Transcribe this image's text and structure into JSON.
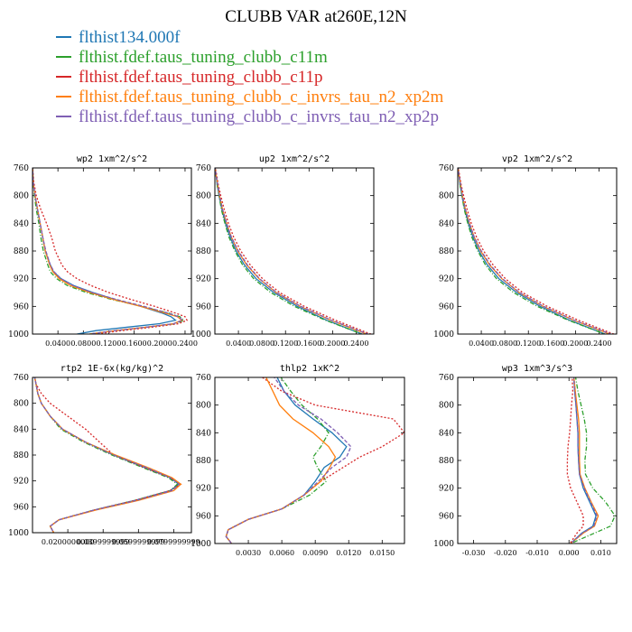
{
  "title": "CLUBB VAR at260E,12N",
  "legend": [
    {
      "label": "flthist134.000f",
      "color": "#1f77b4"
    },
    {
      "label": "flthist.fdef.taus_tuning_clubb_c11m",
      "color": "#2ca02c"
    },
    {
      "label": "flthist.fdef.taus_tuning_clubb_c11p",
      "color": "#d62728"
    },
    {
      "label": "flthist.fdef.taus_tuning_clubb_c_invrs_tau_n2_xp2m",
      "color": "#ff7f0e"
    },
    {
      "label": "flthist.fdef.taus_tuning_clubb_c_invrs_tau_n2_xp2p",
      "color": "#7f5fb4"
    }
  ],
  "series_styles": [
    {
      "color": "#1f77b4",
      "dash": ""
    },
    {
      "color": "#2ca02c",
      "dash": "5,2,1,2"
    },
    {
      "color": "#d62728",
      "dash": "2,2"
    },
    {
      "color": "#ff7f0e",
      "dash": ""
    },
    {
      "color": "#7f5fb4",
      "dash": "4,2"
    }
  ],
  "chart_data": [
    {
      "type": "line",
      "title": "wp2   1xm^2/s^2",
      "xlim": [
        0,
        0.25
      ],
      "ylim": [
        760,
        1000
      ],
      "xticks": [
        0.04,
        0.08,
        0.12,
        0.16,
        0.2,
        0.24
      ],
      "xtick_labels": [
        "0.0400",
        "0.0800",
        "0.1200",
        "0.1600",
        "0.2000",
        "0.2400"
      ],
      "yticks": [
        760,
        800,
        840,
        880,
        920,
        960,
        1000
      ],
      "ytick_labels": [
        "760",
        "800",
        "840",
        "880",
        "920",
        "960",
        "1000"
      ],
      "y": [
        757,
        780,
        800,
        820,
        840,
        860,
        880,
        900,
        910,
        920,
        930,
        940,
        950,
        960,
        970,
        975,
        980,
        985,
        990,
        995,
        1000
      ],
      "series": [
        {
          "values": [
            0,
            0.001,
            0.004,
            0.008,
            0.012,
            0.016,
            0.02,
            0.028,
            0.033,
            0.045,
            0.065,
            0.095,
            0.13,
            0.17,
            0.205,
            0.218,
            0.225,
            0.2,
            0.15,
            0.1,
            0.07
          ]
        },
        {
          "values": [
            0,
            0.001,
            0.003,
            0.006,
            0.01,
            0.013,
            0.017,
            0.024,
            0.028,
            0.038,
            0.055,
            0.085,
            0.125,
            0.172,
            0.215,
            0.232,
            0.238,
            0.225,
            0.18,
            0.13,
            0.09
          ]
        },
        {
          "values": [
            0,
            0.002,
            0.006,
            0.013,
            0.022,
            0.03,
            0.036,
            0.046,
            0.055,
            0.07,
            0.092,
            0.12,
            0.155,
            0.192,
            0.226,
            0.24,
            0.243,
            0.23,
            0.19,
            0.14,
            0.1
          ]
        },
        {
          "values": [
            0,
            0.001,
            0.004,
            0.008,
            0.012,
            0.016,
            0.02,
            0.027,
            0.032,
            0.042,
            0.06,
            0.09,
            0.128,
            0.17,
            0.21,
            0.228,
            0.235,
            0.222,
            0.18,
            0.13,
            0.09
          ]
        },
        {
          "values": [
            0,
            0.001,
            0.004,
            0.008,
            0.012,
            0.016,
            0.021,
            0.028,
            0.034,
            0.045,
            0.064,
            0.094,
            0.132,
            0.175,
            0.214,
            0.23,
            0.236,
            0.222,
            0.18,
            0.13,
            0.09
          ]
        }
      ]
    },
    {
      "type": "line",
      "title": "up2   1xm^2/s^2",
      "xlim": [
        0,
        0.27
      ],
      "ylim": [
        760,
        1000
      ],
      "xticks": [
        0.04,
        0.08,
        0.12,
        0.16,
        0.2,
        0.24
      ],
      "xtick_labels": [
        "0.0400",
        "0.0800",
        "0.1200",
        "0.1600",
        "0.2000",
        "0.2400"
      ],
      "yticks": [
        760,
        800,
        840,
        880,
        920,
        960,
        1000
      ],
      "ytick_labels": [
        "760",
        "800",
        "840",
        "880",
        "920",
        "960",
        "1000"
      ],
      "y": [
        757,
        770,
        785,
        800,
        820,
        840,
        860,
        880,
        900,
        920,
        940,
        960,
        980,
        1000
      ],
      "series": [
        {
          "values": [
            0,
            0.002,
            0.004,
            0.007,
            0.012,
            0.018,
            0.026,
            0.036,
            0.05,
            0.07,
            0.1,
            0.14,
            0.19,
            0.25
          ]
        },
        {
          "values": [
            0,
            0.002,
            0.004,
            0.007,
            0.011,
            0.017,
            0.024,
            0.034,
            0.047,
            0.066,
            0.095,
            0.135,
            0.188,
            0.25
          ]
        },
        {
          "values": [
            0,
            0.003,
            0.006,
            0.01,
            0.016,
            0.023,
            0.032,
            0.044,
            0.06,
            0.081,
            0.11,
            0.152,
            0.205,
            0.265
          ]
        },
        {
          "values": [
            0,
            0.002,
            0.005,
            0.008,
            0.013,
            0.02,
            0.028,
            0.039,
            0.054,
            0.075,
            0.104,
            0.145,
            0.197,
            0.258
          ]
        },
        {
          "values": [
            0,
            0.002,
            0.005,
            0.008,
            0.013,
            0.02,
            0.028,
            0.04,
            0.055,
            0.076,
            0.105,
            0.146,
            0.198,
            0.26
          ]
        }
      ]
    },
    {
      "type": "line",
      "title": "vp2   1xm^2/s^2",
      "xlim": [
        0,
        0.27
      ],
      "ylim": [
        760,
        1000
      ],
      "xticks": [
        0.04,
        0.08,
        0.12,
        0.16,
        0.2,
        0.24
      ],
      "xtick_labels": [
        "0.0400",
        "0.0800",
        "0.1200",
        "0.1600",
        "0.2000",
        "0.2400"
      ],
      "yticks": [
        760,
        800,
        840,
        880,
        920,
        960,
        1000
      ],
      "ytick_labels": [
        "760",
        "800",
        "840",
        "880",
        "920",
        "960",
        "1000"
      ],
      "y": [
        757,
        770,
        785,
        800,
        820,
        840,
        860,
        880,
        900,
        920,
        940,
        960,
        980,
        1000
      ],
      "series": [
        {
          "values": [
            0,
            0.002,
            0.004,
            0.007,
            0.012,
            0.018,
            0.026,
            0.036,
            0.05,
            0.07,
            0.1,
            0.14,
            0.19,
            0.25
          ]
        },
        {
          "values": [
            0,
            0.002,
            0.004,
            0.007,
            0.011,
            0.017,
            0.024,
            0.034,
            0.047,
            0.066,
            0.095,
            0.135,
            0.188,
            0.25
          ]
        },
        {
          "values": [
            0,
            0.003,
            0.006,
            0.01,
            0.016,
            0.023,
            0.032,
            0.044,
            0.06,
            0.081,
            0.11,
            0.152,
            0.205,
            0.265
          ]
        },
        {
          "values": [
            0,
            0.002,
            0.005,
            0.008,
            0.013,
            0.02,
            0.028,
            0.039,
            0.054,
            0.075,
            0.104,
            0.145,
            0.197,
            0.258
          ]
        },
        {
          "values": [
            0,
            0.002,
            0.005,
            0.008,
            0.013,
            0.02,
            0.028,
            0.04,
            0.055,
            0.076,
            0.105,
            0.146,
            0.198,
            0.26
          ]
        }
      ]
    },
    {
      "type": "line",
      "title": "rtp2   1E-6x(kg/kg)^2",
      "xlim": [
        0,
        0.09
      ],
      "ylim": [
        760,
        1000
      ],
      "xticks": [
        0.02,
        0.04,
        0.06,
        0.08
      ],
      "xtick_labels": [
        "0.0200000000",
        "0.0399999999",
        "0.0599999999",
        "0.0799999999"
      ],
      "yticks": [
        760,
        800,
        840,
        880,
        920,
        960,
        1000
      ],
      "ytick_labels": [
        "760",
        "800",
        "840",
        "880",
        "920",
        "960",
        "1000"
      ],
      "y": [
        757,
        770,
        785,
        800,
        820,
        840,
        860,
        880,
        900,
        915,
        925,
        935,
        950,
        965,
        980,
        990,
        1000
      ],
      "series": [
        {
          "values": [
            0.001,
            0.002,
            0.003,
            0.005,
            0.01,
            0.017,
            0.03,
            0.046,
            0.064,
            0.078,
            0.083,
            0.078,
            0.058,
            0.035,
            0.015,
            0.01,
            0.012
          ]
        },
        {
          "values": [
            0.001,
            0.002,
            0.003,
            0.005,
            0.01,
            0.016,
            0.029,
            0.045,
            0.063,
            0.077,
            0.082,
            0.078,
            0.058,
            0.035,
            0.015,
            0.01,
            0.012
          ]
        },
        {
          "values": [
            0.001,
            0.002,
            0.005,
            0.01,
            0.02,
            0.03,
            0.038,
            0.046,
            0.064,
            0.078,
            0.084,
            0.078,
            0.058,
            0.035,
            0.015,
            0.01,
            0.012
          ]
        },
        {
          "values": [
            0.001,
            0.002,
            0.003,
            0.005,
            0.01,
            0.017,
            0.03,
            0.047,
            0.066,
            0.079,
            0.084,
            0.08,
            0.06,
            0.036,
            0.015,
            0.01,
            0.012
          ]
        },
        {
          "values": [
            0.001,
            0.002,
            0.003,
            0.005,
            0.01,
            0.017,
            0.03,
            0.046,
            0.065,
            0.078,
            0.083,
            0.079,
            0.059,
            0.035,
            0.015,
            0.01,
            0.012
          ]
        }
      ]
    },
    {
      "type": "line",
      "title": "thlp2   1xK^2",
      "xlim": [
        0,
        0.017
      ],
      "ylim": [
        760,
        1000
      ],
      "xticks": [
        0.003,
        0.006,
        0.009,
        0.012,
        0.015
      ],
      "xtick_labels": [
        "0.0030",
        "0.0060",
        "0.0090",
        "0.0120",
        "0.0150"
      ],
      "yticks": [
        760,
        800,
        840,
        880,
        920,
        960,
        1000
      ],
      "ytick_labels": [
        "760",
        "800",
        "840",
        "880",
        "920",
        "960",
        "1000"
      ],
      "y": [
        757,
        780,
        800,
        820,
        840,
        860,
        875,
        890,
        910,
        930,
        950,
        965,
        980,
        990,
        1000
      ],
      "series": [
        {
          "values": [
            0.0055,
            0.0062,
            0.0072,
            0.0088,
            0.0105,
            0.0118,
            0.0112,
            0.0098,
            0.009,
            0.008,
            0.006,
            0.003,
            0.0012,
            0.001,
            0.0015
          ]
        },
        {
          "values": [
            0.0058,
            0.0068,
            0.0078,
            0.0092,
            0.0102,
            0.0095,
            0.0088,
            0.0092,
            0.01,
            0.0085,
            0.006,
            0.003,
            0.0012,
            0.001,
            0.0015
          ]
        },
        {
          "values": [
            0.004,
            0.006,
            0.009,
            0.016,
            0.017,
            0.015,
            0.013,
            0.0115,
            0.0095,
            0.008,
            0.006,
            0.003,
            0.0012,
            0.001,
            0.0015
          ]
        },
        {
          "values": [
            0.0045,
            0.0052,
            0.0058,
            0.007,
            0.0088,
            0.0102,
            0.0108,
            0.0103,
            0.0095,
            0.008,
            0.006,
            0.003,
            0.0012,
            0.001,
            0.0015
          ]
        },
        {
          "values": [
            0.0052,
            0.0062,
            0.0075,
            0.0095,
            0.011,
            0.0122,
            0.0118,
            0.0105,
            0.0093,
            0.008,
            0.006,
            0.003,
            0.0012,
            0.001,
            0.0015
          ]
        }
      ]
    },
    {
      "type": "line",
      "title": "wp3   1xm^3/s^3",
      "xlim": [
        -0.035,
        0.015
      ],
      "ylim": [
        760,
        1000
      ],
      "xticks": [
        -0.03,
        -0.02,
        -0.01,
        0.0,
        0.01
      ],
      "xtick_labels": [
        "-0.030",
        "-0.020",
        "-0.010",
        "0.000",
        "0.010"
      ],
      "yticks": [
        760,
        800,
        840,
        880,
        920,
        960,
        1000
      ],
      "ytick_labels": [
        "760",
        "800",
        "840",
        "880",
        "920",
        "960",
        "1000"
      ],
      "y": [
        757,
        780,
        800,
        820,
        840,
        860,
        880,
        900,
        920,
        940,
        960,
        975,
        985,
        1000
      ],
      "series": [
        {
          "values": [
            0.0015,
            0.0018,
            0.0022,
            0.0025,
            0.0028,
            0.0028,
            0.003,
            0.0033,
            0.0045,
            0.0065,
            0.0085,
            0.0075,
            0.004,
            0.0005
          ]
        },
        {
          "values": [
            0.002,
            0.0028,
            0.0038,
            0.0048,
            0.0055,
            0.0055,
            0.005,
            0.0052,
            0.0075,
            0.0115,
            0.0145,
            0.013,
            0.008,
            0.0005
          ]
        },
        {
          "values": [
            0.001,
            0.0012,
            0.0008,
            0.0005,
            0.0002,
            -0.0003,
            -0.0005,
            -0.0005,
            0.0005,
            0.0025,
            0.0045,
            0.0045,
            0.0025,
            0.0003
          ]
        },
        {
          "values": [
            0.0015,
            0.002,
            0.0025,
            0.003,
            0.0033,
            0.0033,
            0.0033,
            0.0035,
            0.005,
            0.007,
            0.0092,
            0.008,
            0.0045,
            0.0005
          ]
        },
        {
          "values": [
            0.0015,
            0.0018,
            0.0022,
            0.0025,
            0.0028,
            0.0028,
            0.003,
            0.0033,
            0.0048,
            0.0068,
            0.0088,
            0.0078,
            0.0042,
            0.0005
          ]
        }
      ]
    }
  ]
}
